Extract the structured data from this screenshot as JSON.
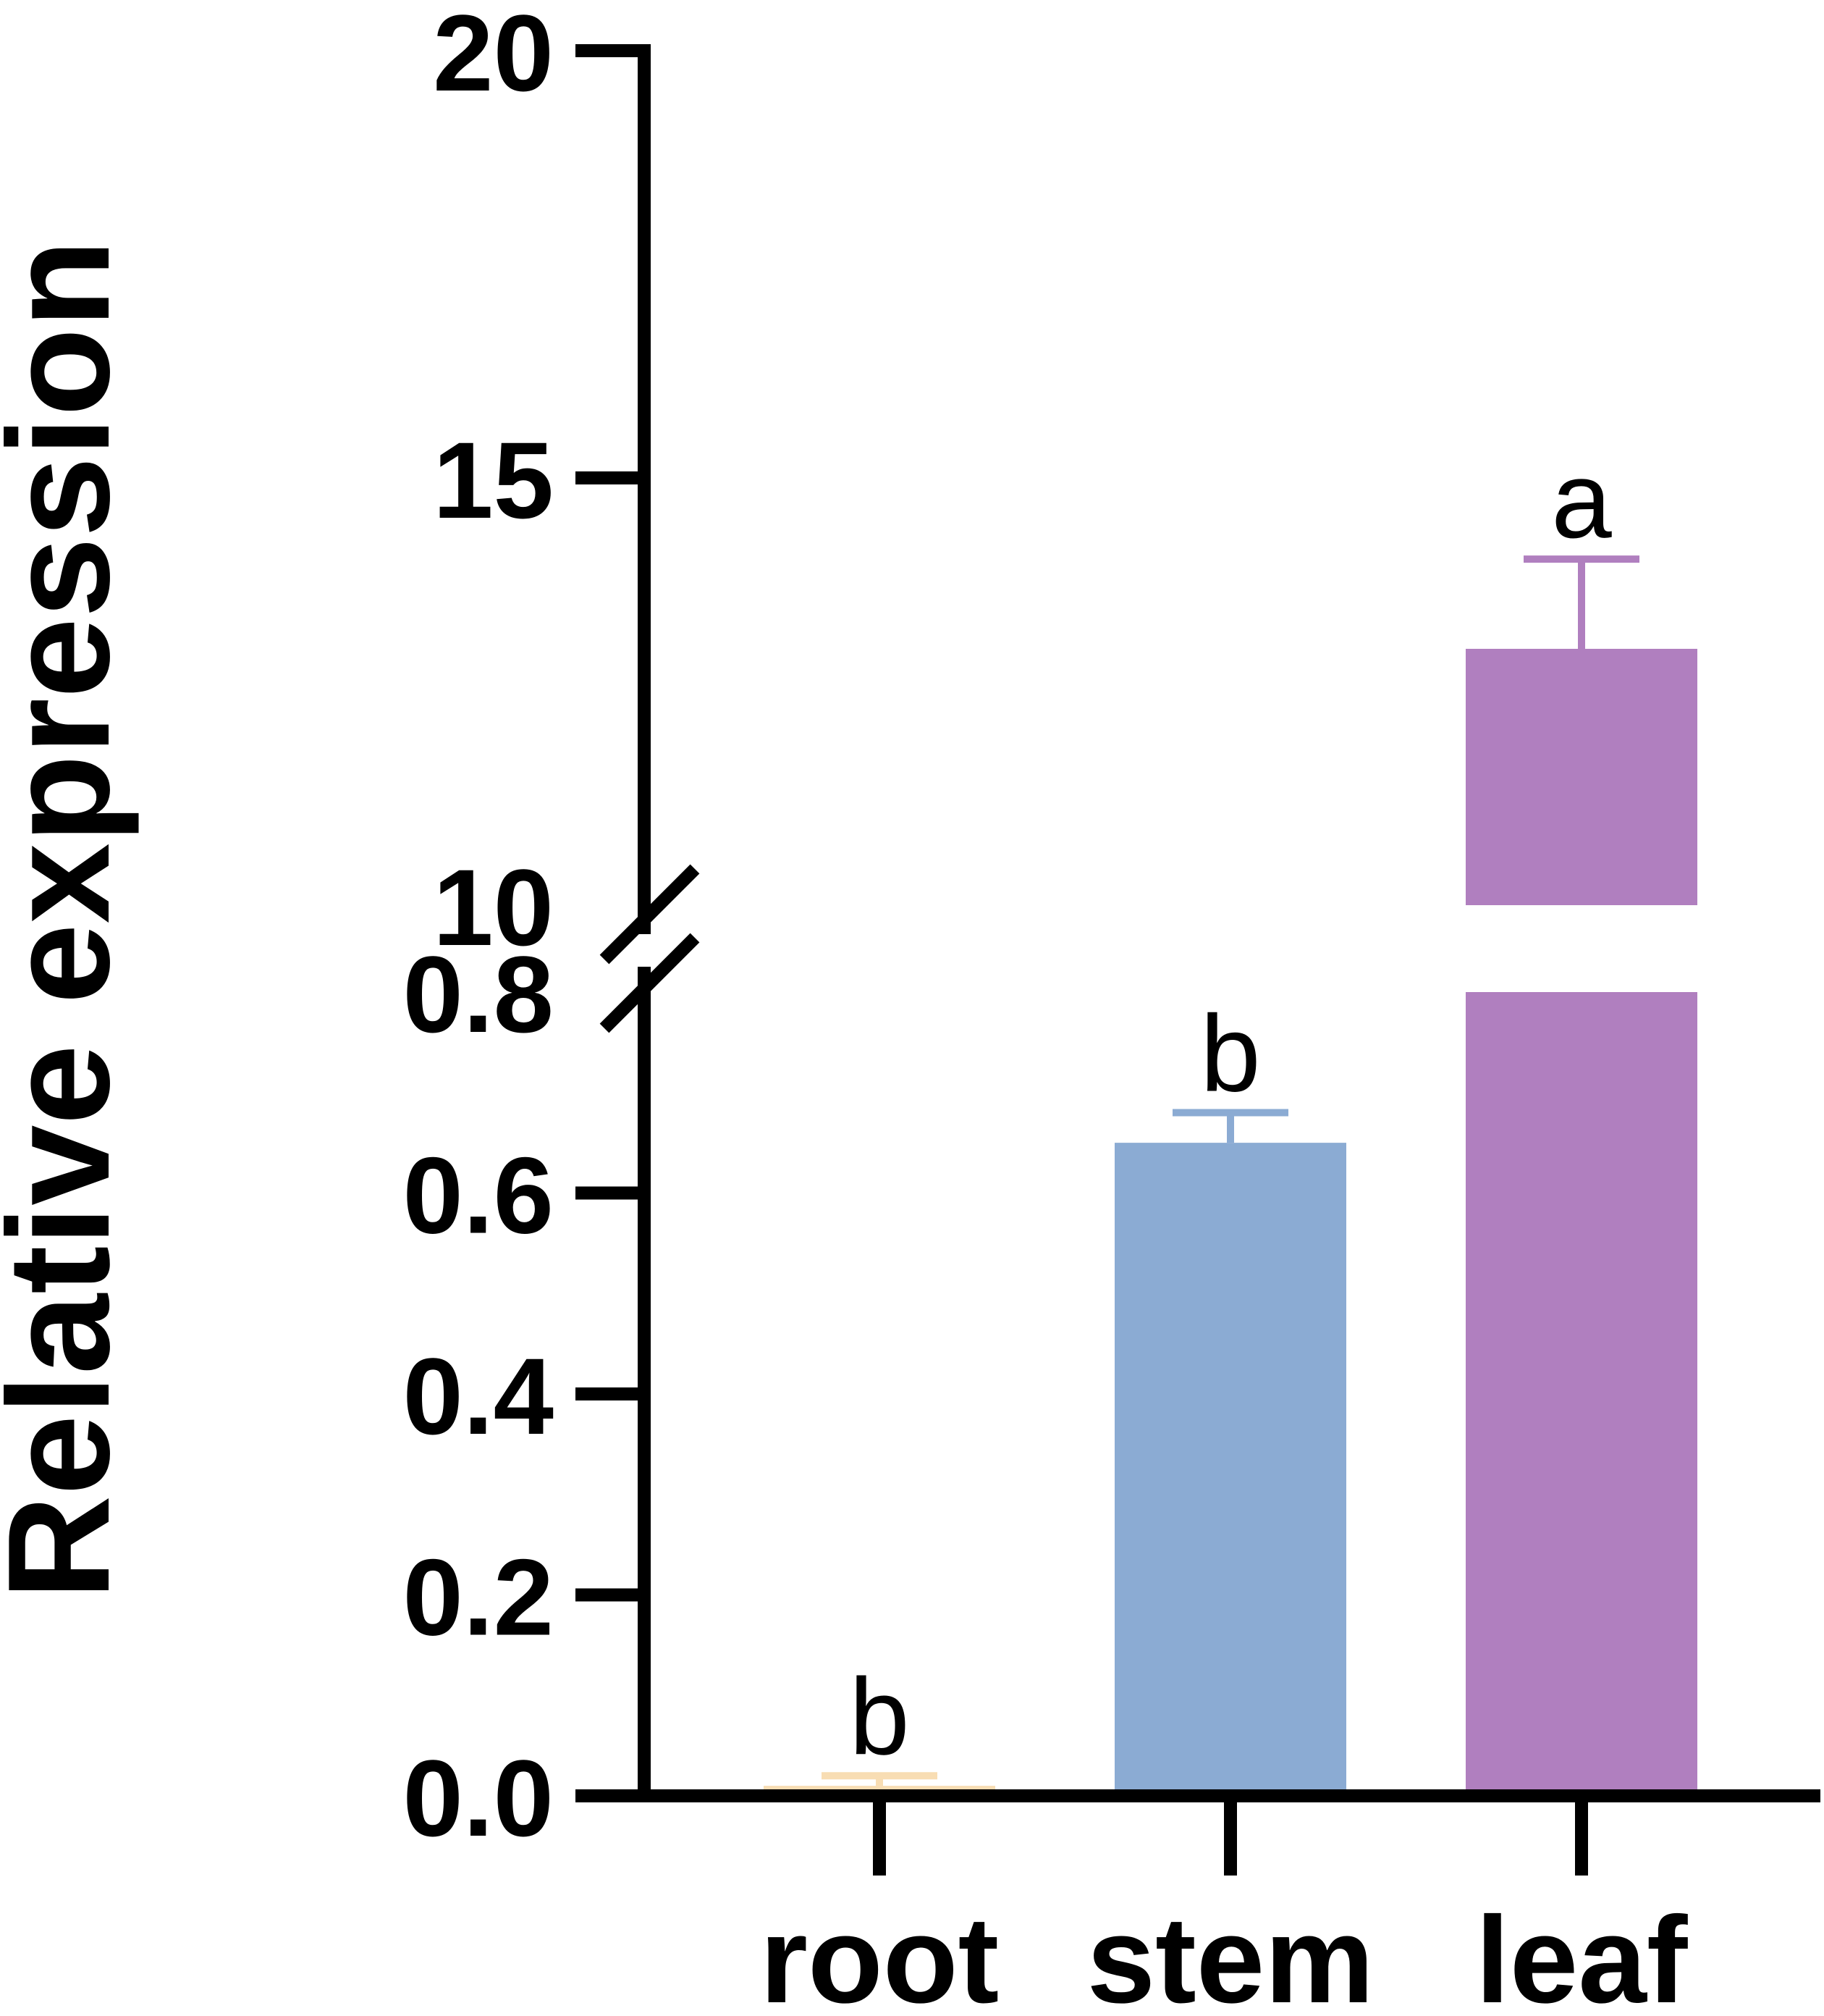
{
  "chart_data": {
    "type": "bar",
    "title": "",
    "xlabel": "",
    "ylabel": "Relative expression",
    "categories": [
      "root",
      "stem",
      "leaf"
    ],
    "values": [
      0.01,
      0.65,
      13.0
    ],
    "error": [
      0.01,
      0.03,
      1.05
    ],
    "significance": [
      "b",
      "b",
      "a"
    ],
    "colors": [
      "#F8DDB3",
      "#8BABD3",
      "#B07FBF"
    ],
    "axis_break": true,
    "lower_segment": {
      "ylim": [
        0,
        0.8
      ],
      "ticks": [
        0.0,
        0.2,
        0.4,
        0.6,
        0.8
      ],
      "tick_labels": [
        "0.0",
        "0.2",
        "0.4",
        "0.6",
        "0.8"
      ]
    },
    "upper_segment": {
      "ylim": [
        10,
        20
      ],
      "ticks": [
        10,
        15,
        20
      ],
      "tick_labels": [
        "10",
        "15",
        "20"
      ]
    },
    "grid": false,
    "legend": "none"
  }
}
